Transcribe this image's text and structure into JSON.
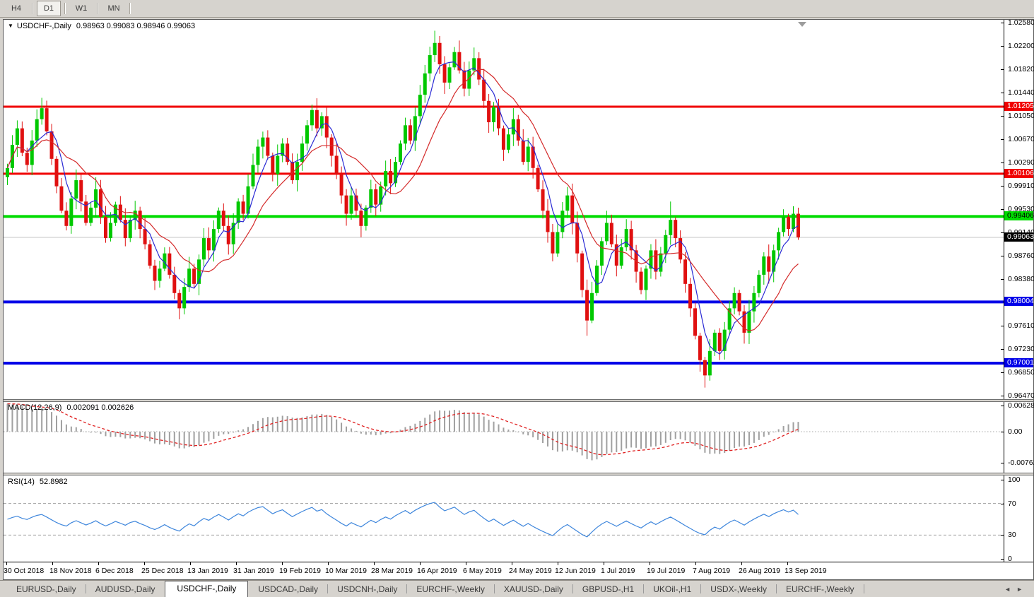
{
  "toolbar": {
    "buttons": [
      {
        "label": "H4",
        "active": false
      },
      {
        "label": "D1",
        "active": true
      },
      {
        "label": "W1",
        "active": false
      },
      {
        "label": "MN",
        "active": false
      }
    ]
  },
  "title": {
    "symbol": "USDCHF-,Daily",
    "ohlc": "0.98963 0.99083 0.98946 0.99063"
  },
  "chart_data": {
    "type": "candlestick",
    "symbol": "USDCHF",
    "timeframe": "Daily",
    "first_open": 1.0005,
    "closes": [
      1.002,
      1.0058,
      1.0085,
      1.0045,
      1.0025,
      1.0065,
      1.01,
      1.0118,
      1.008,
      1.0035,
      0.999,
      0.995,
      0.9925,
      0.997,
      1.0,
      0.9965,
      0.993,
      0.9955,
      0.9985,
      0.994,
      0.9905,
      0.993,
      0.996,
      0.9935,
      0.9905,
      0.9935,
      0.995,
      0.992,
      0.9895,
      0.986,
      0.9835,
      0.9855,
      0.988,
      0.9845,
      0.9815,
      0.979,
      0.9825,
      0.9855,
      0.983,
      0.987,
      0.9905,
      0.9885,
      0.992,
      0.995,
      0.9925,
      0.9895,
      0.993,
      0.9965,
      0.9945,
      0.999,
      1.0025,
      1.0055,
      1.007,
      1.004,
      1.001,
      1.004,
      1.006,
      1.003,
      1.0,
      1.003,
      1.006,
      1.009,
      1.0115,
      1.0085,
      1.0105,
      1.007,
      1.004,
      1.001,
      0.9975,
      0.9945,
      0.9975,
      0.995,
      0.9925,
      0.9955,
      0.9985,
      0.996,
      0.999,
      1.0015,
      0.9995,
      1.003,
      1.006,
      1.009,
      1.0065,
      1.0105,
      1.014,
      1.0175,
      1.0205,
      1.0225,
      1.019,
      1.016,
      1.0185,
      1.021,
      1.018,
      1.015,
      1.018,
      1.02,
      1.0165,
      1.013,
      1.0095,
      1.012,
      1.0085,
      1.005,
      1.0075,
      1.01,
      1.0065,
      1.003,
      1.0055,
      1.002,
      0.9985,
      0.995,
      0.9915,
      0.988,
      0.9915,
      0.995,
      0.9975,
      0.993,
      0.988,
      0.982,
      0.977,
      0.9815,
      0.986,
      0.99,
      0.993,
      0.9895,
      0.986,
      0.989,
      0.992,
      0.9885,
      0.985,
      0.982,
      0.9855,
      0.9885,
      0.985,
      0.988,
      0.991,
      0.9935,
      0.9905,
      0.987,
      0.983,
      0.979,
      0.9745,
      0.9705,
      0.968,
      0.972,
      0.975,
      0.972,
      0.9755,
      0.979,
      0.9815,
      0.9785,
      0.975,
      0.9785,
      0.9815,
      0.9845,
      0.9875,
      0.985,
      0.9885,
      0.9915,
      0.994,
      0.992,
      0.9945,
      0.99063
    ],
    "wick_extremes": {
      "7": {
        "hi": 1.0135
      },
      "35": {
        "lo": 0.9772
      },
      "62": {
        "hi": 1.0124
      },
      "87": {
        "hi": 1.0245
      },
      "118": {
        "lo": 0.9745
      },
      "135": {
        "hi": 0.9965
      },
      "142": {
        "lo": 0.966
      }
    },
    "y_axis_ticks": [
      "1.02580",
      "1.02200",
      "1.01820",
      "1.01440",
      "1.01050",
      "1.00670",
      "1.00290",
      "0.99910",
      "0.99530",
      "0.99140",
      "0.98760",
      "0.98380",
      "0.97610",
      "0.97230",
      "0.96850",
      "0.96470"
    ],
    "levels": [
      {
        "price": 1.01205,
        "color": "#F00000",
        "width": 3,
        "badge": "1.01205",
        "badge_text": "#FFFFFF"
      },
      {
        "price": 1.00106,
        "color": "#F00000",
        "width": 3,
        "badge": "1.00106",
        "badge_text": "#FFFFFF"
      },
      {
        "price": 0.99406,
        "color": "#00DC00",
        "width": 4,
        "badge": "0.99406",
        "badge_text": "#000000"
      },
      {
        "price": 0.98004,
        "color": "#0000E8",
        "width": 4,
        "badge": "0.98004",
        "badge_text": "#FFFFFF"
      },
      {
        "price": 0.97001,
        "color": "#0000E8",
        "width": 4,
        "badge": "0.97001",
        "badge_text": "#FFFFFF"
      }
    ],
    "current_price": {
      "value": 0.99063,
      "badge": "0.99063",
      "line_color": "#C4C4C4",
      "badge_bg": "#000000",
      "badge_text": "#FFFFFF"
    },
    "ma_fast": {
      "period": 5,
      "color": "#2A2AD4"
    },
    "ma_slow": {
      "period": 13,
      "color": "#D42A2A"
    },
    "candle_up_color": "#00C800",
    "candle_down_color": "#E01010",
    "x_axis_dates": [
      "30 Oct 2018",
      "18 Nov 2018",
      "6 Dec 2018",
      "25 Dec 2018",
      "13 Jan 2019",
      "31 Jan 2019",
      "19 Feb 2019",
      "10 Mar 2019",
      "28 Mar 2019",
      "16 Apr 2019",
      "6 May 2019",
      "24 May 2019",
      "12 Jun 2019",
      "1 Jul 2019",
      "19 Jul 2019",
      "7 Aug 2019",
      "26 Aug 2019",
      "13 Sep 2019"
    ]
  },
  "macd": {
    "label": "MACD(12,26,9)",
    "values": "0.002091 0.002626",
    "axis_ticks": [
      "0.006286",
      "0.00",
      "-0.00762"
    ],
    "params": {
      "fast": 12,
      "slow": 26,
      "signal": 9
    },
    "hist_color": "#A0A0A0",
    "signal_color": "#E02020"
  },
  "rsi": {
    "label": "RSI(14)",
    "value": "52.8982",
    "period": 14,
    "axis_ticks": [
      "100",
      "70",
      "30",
      "0"
    ],
    "levels": [
      70,
      30
    ],
    "line_color": "#3E86DC"
  },
  "tabs": {
    "items": [
      "EURUSD-,Daily",
      "AUDUSD-,Daily",
      "USDCHF-,Daily",
      "USDCAD-,Daily",
      "USDCNH-,Daily",
      "EURCHF-,Weekly",
      "XAUUSD-,Daily",
      "GBPUSD-,H1",
      "UKOil-,H1",
      "USDX-,Weekly",
      "EURCHF-,Weekly"
    ],
    "active_index": 2,
    "scroll_left_icon": "◄",
    "scroll_right_icon": "►"
  }
}
